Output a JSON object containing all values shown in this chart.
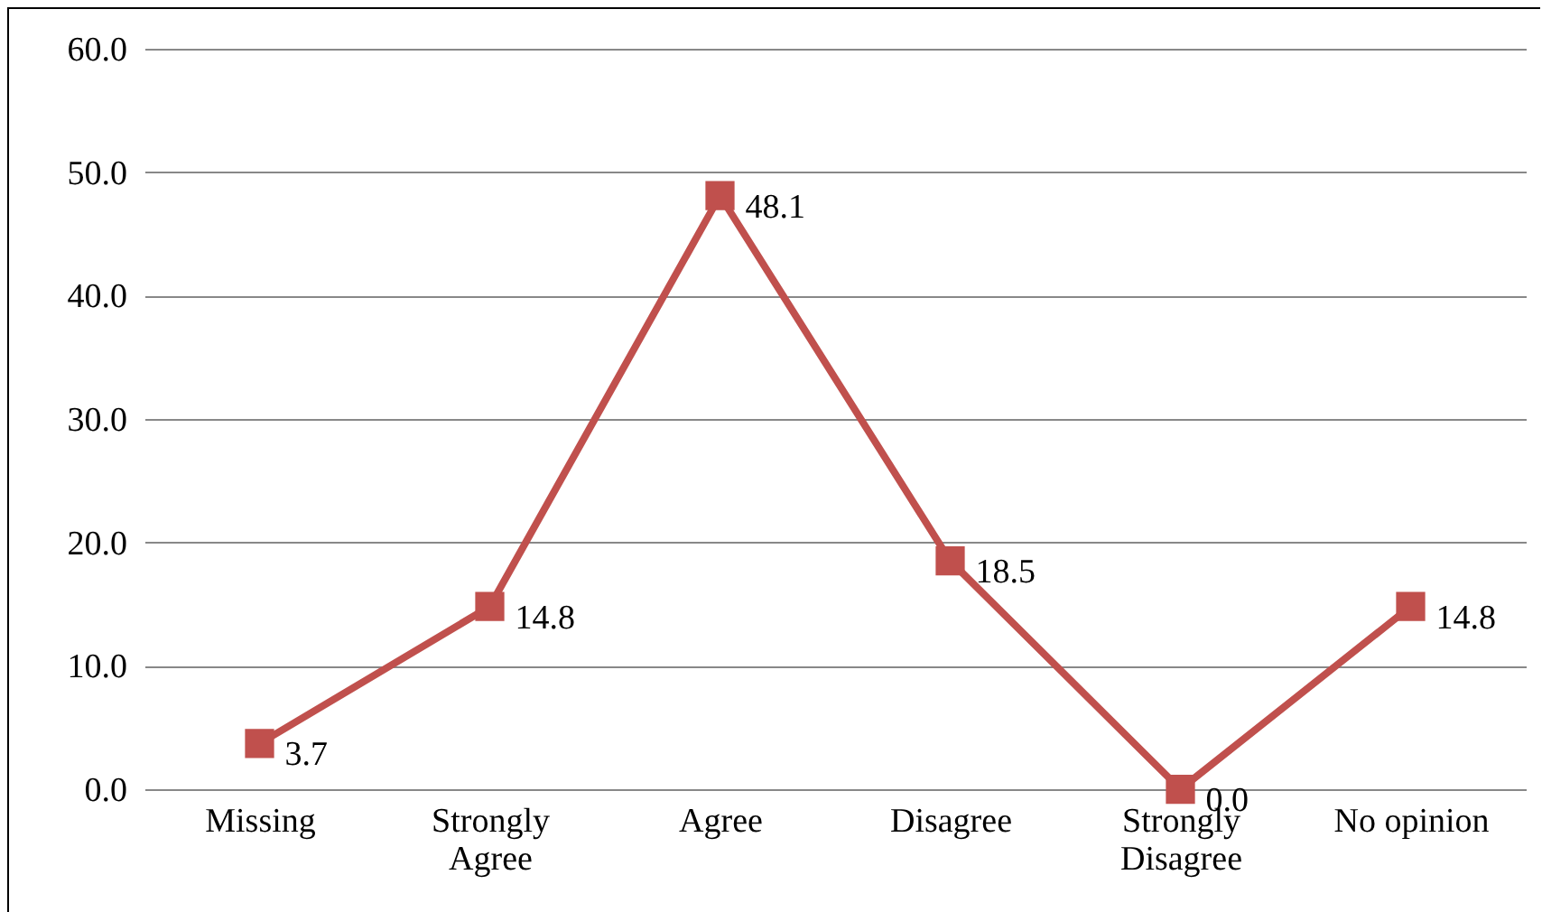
{
  "chart_data": {
    "type": "line",
    "categories": [
      "Missing",
      "Strongly Agree",
      "Agree",
      "Disagree",
      "Strongly Disagree",
      "No opinion"
    ],
    "series": [
      {
        "color": "#c0504d",
        "values": [
          3.7,
          14.8,
          48.1,
          18.5,
          0.0,
          14.8
        ]
      }
    ],
    "value_labels": [
      "3.7",
      "14.8",
      "48.1",
      "18.5",
      "0.0",
      "14.8"
    ],
    "ylim": [
      0,
      60
    ],
    "yticks": [
      {
        "value": 0,
        "label": "0.0"
      },
      {
        "value": 10,
        "label": "10.0"
      },
      {
        "value": 20,
        "label": "20.0"
      },
      {
        "value": 30,
        "label": "30.0"
      },
      {
        "value": 40,
        "label": "40.0"
      },
      {
        "value": 50,
        "label": "50.0"
      },
      {
        "value": 60,
        "label": "60.0"
      }
    ],
    "grid": "y",
    "marker": "square",
    "line_style": "solid"
  }
}
